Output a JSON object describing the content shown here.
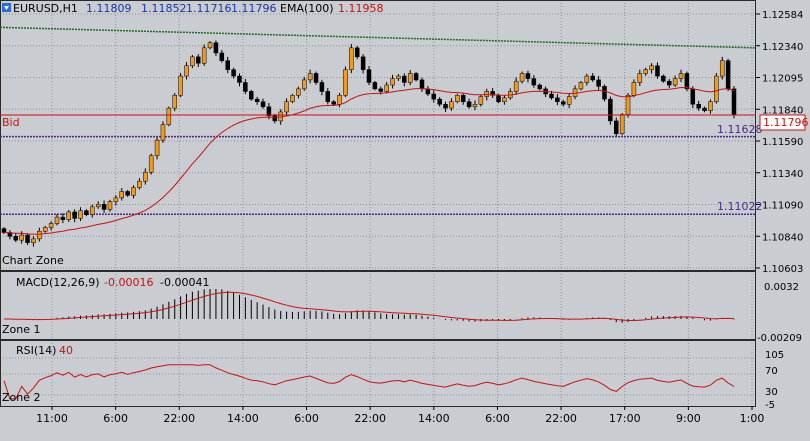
{
  "header": {
    "symbol": "EURUSD,H1",
    "open": "1.11809",
    "high": "1.11852",
    "low": "1.11716",
    "close": "1.11796",
    "ema_label": "EMA(100)",
    "ema_value": "1.11958"
  },
  "price_axis": {
    "ticks": [
      "1.12584",
      "1.12340",
      "1.12095",
      "1.11840",
      "1.11590",
      "1.11340",
      "1.11090",
      "1.10840",
      "1.10603"
    ],
    "bid_label": "Bid",
    "bid_value": "1.11796",
    "level_high": "1.11628",
    "level_low": "1.11022"
  },
  "zones": {
    "chart": "Chart Zone",
    "zone1": "Zone 1",
    "zone2": "Zone 2"
  },
  "macd": {
    "label": "MACD(12,26,9)",
    "v1": "-0.00016",
    "v2": "-0.00041",
    "ticks": [
      "0.0032",
      "-0.00209"
    ]
  },
  "rsi": {
    "label": "RSI(14)",
    "value": "40",
    "ticks": [
      "105",
      "70",
      "30",
      "-5"
    ]
  },
  "time_axis": [
    "11:00",
    "6:00",
    "22:00",
    "14:00",
    "6:00",
    "22:00",
    "14:00",
    "6:00",
    "22:00",
    "17:00",
    "9:00",
    "1:00"
  ],
  "colors": {
    "bull": "#f29a1d",
    "bear": "#000000",
    "ema": "#cc1111",
    "trend": "#1e6b1e",
    "level": "#4b2a8c",
    "bg": "#c9ccd1"
  },
  "chart_data": {
    "type": "candlestick",
    "xlabel": "",
    "ylabel": "",
    "ylim": [
      1.10603,
      1.12584
    ],
    "x_ticks": [
      "11:00",
      "6:00",
      "22:00",
      "14:00",
      "6:00",
      "22:00",
      "14:00",
      "6:00",
      "22:00",
      "17:00",
      "9:00",
      "1:00"
    ],
    "closes": [
      1.1088,
      1.1085,
      1.1082,
      1.1086,
      1.108,
      1.1083,
      1.1089,
      1.1092,
      1.1095,
      1.11,
      1.1098,
      1.1104,
      1.1099,
      1.1105,
      1.1102,
      1.1108,
      1.111,
      1.1106,
      1.1112,
      1.1115,
      1.112,
      1.1117,
      1.1123,
      1.1128,
      1.1135,
      1.1148,
      1.116,
      1.1172,
      1.1185,
      1.1195,
      1.121,
      1.1218,
      1.1225,
      1.122,
      1.1232,
      1.1236,
      1.1228,
      1.1222,
      1.1215,
      1.121,
      1.1205,
      1.1198,
      1.1192,
      1.119,
      1.1186,
      1.1179,
      1.1175,
      1.1182,
      1.119,
      1.1195,
      1.12,
      1.1207,
      1.1212,
      1.1205,
      1.1198,
      1.119,
      1.1188,
      1.1195,
      1.1215,
      1.1232,
      1.1225,
      1.1215,
      1.1205,
      1.12,
      1.1198,
      1.1203,
      1.1208,
      1.121,
      1.1205,
      1.1212,
      1.1207,
      1.12,
      1.1196,
      1.1192,
      1.1188,
      1.1185,
      1.119,
      1.1195,
      1.119,
      1.1186,
      1.1188,
      1.1194,
      1.1198,
      1.1195,
      1.119,
      1.1193,
      1.1198,
      1.1206,
      1.1212,
      1.1208,
      1.1203,
      1.12,
      1.1196,
      1.1193,
      1.119,
      1.1188,
      1.1194,
      1.12,
      1.1205,
      1.121,
      1.1207,
      1.1202,
      1.1192,
      1.1175,
      1.1165,
      1.118,
      1.1195,
      1.1205,
      1.1212,
      1.1215,
      1.1218,
      1.121,
      1.1206,
      1.1203,
      1.1208,
      1.1212,
      1.12,
      1.1188,
      1.1185,
      1.1183,
      1.119,
      1.121,
      1.1222,
      1.12,
      1.118
    ],
    "ema100_level": 1.11958,
    "bid": 1.11796,
    "horizontal_levels": [
      1.11628,
      1.11022
    ],
    "trendline": {
      "from": 1.1248,
      "to": 1.1232
    },
    "macd_ticks": [
      0.0032,
      -0.00209
    ],
    "macd_values": [
      -0.00016,
      -0.00041
    ],
    "rsi_ticks": [
      105,
      70,
      30,
      -5
    ],
    "rsi_value": 40
  }
}
